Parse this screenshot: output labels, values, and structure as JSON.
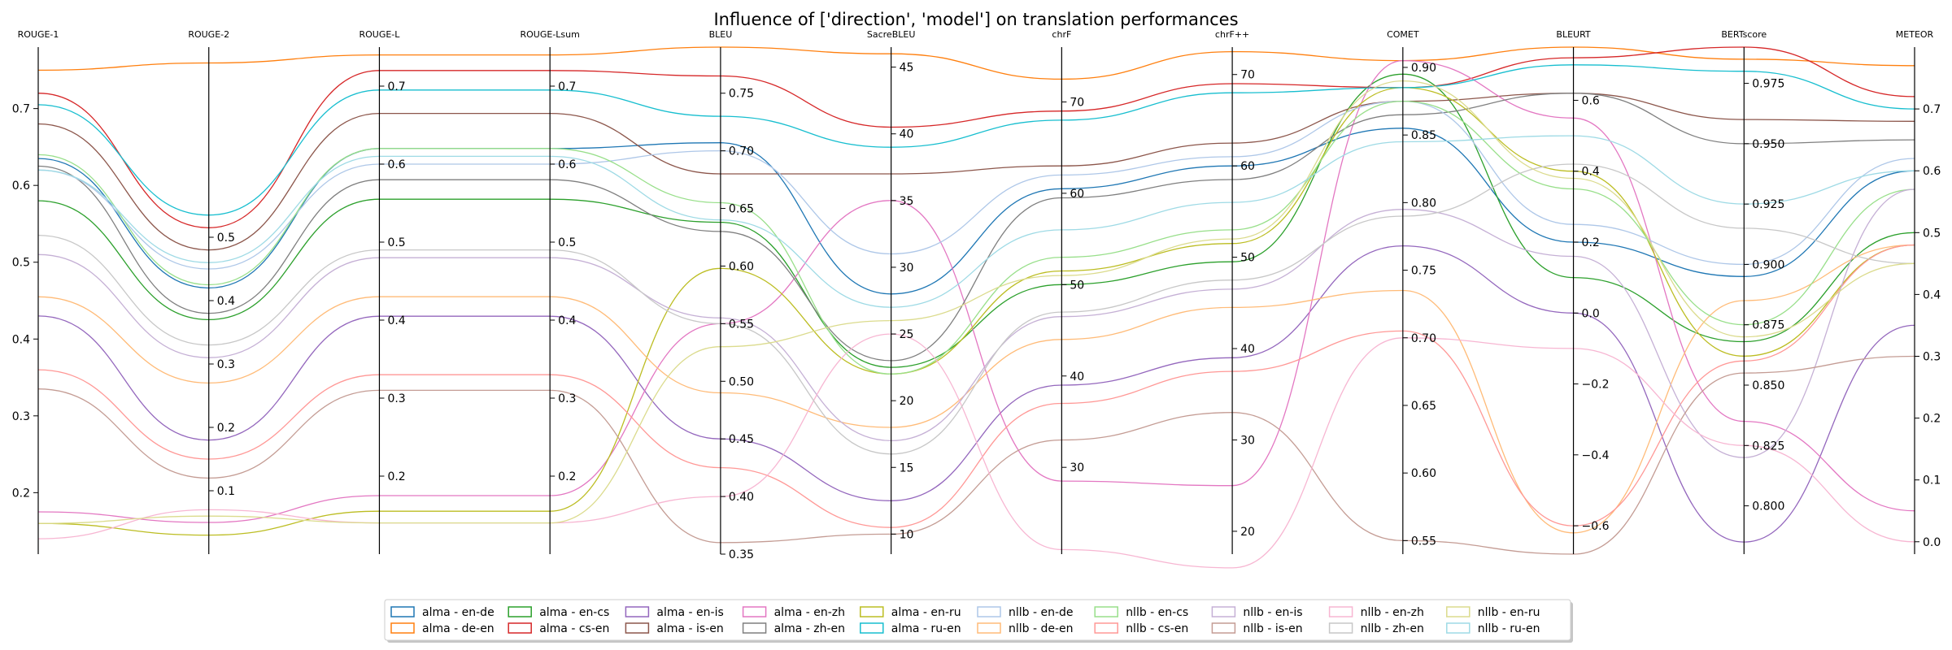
{
  "chart_data": {
    "type": "parallel_coordinates",
    "title": "Influence of ['direction', 'model'] on translation performances",
    "legend": "bottom-center",
    "axes": [
      {
        "name": "ROUGE-1",
        "range": [
          0.12,
          0.78
        ],
        "ticks": [
          0.2,
          0.3,
          0.4,
          0.5,
          0.6,
          0.7
        ],
        "labels": [
          "0.2",
          "0.3",
          "0.4",
          "0.5",
          "0.6",
          "0.7"
        ],
        "tick_side": "left"
      },
      {
        "name": "ROUGE-2",
        "range": [
          0.0,
          0.8
        ],
        "ticks": [
          0.1,
          0.2,
          0.3,
          0.4,
          0.5
        ],
        "labels": [
          "0.1",
          "0.2",
          "0.3",
          "0.4",
          "0.5"
        ],
        "tick_side": "right"
      },
      {
        "name": "ROUGE-L",
        "range": [
          0.1,
          0.75
        ],
        "ticks": [
          0.2,
          0.3,
          0.4,
          0.5,
          0.6,
          0.7
        ],
        "labels": [
          "0.2",
          "0.3",
          "0.4",
          "0.5",
          "0.6",
          "0.7"
        ],
        "tick_side": "right"
      },
      {
        "name": "ROUGE-Lsum",
        "range": [
          0.1,
          0.75
        ],
        "ticks": [
          0.2,
          0.3,
          0.4,
          0.5,
          0.6,
          0.7
        ],
        "labels": [
          "0.2",
          "0.3",
          "0.4",
          "0.5",
          "0.6",
          "0.7"
        ],
        "tick_side": "right"
      },
      {
        "name": "BLEU",
        "range": [
          0.35,
          0.79
        ],
        "ticks": [
          0.35,
          0.4,
          0.45,
          0.5,
          0.55,
          0.6,
          0.65,
          0.7,
          0.75
        ],
        "labels": [
          "0.35",
          "0.40",
          "0.45",
          "0.50",
          "0.55",
          "0.60",
          "0.65",
          "0.70",
          "0.75"
        ],
        "tick_side": "right"
      },
      {
        "name": "SacreBLEU",
        "range": [
          8.5,
          46.5
        ],
        "ticks": [
          10,
          15,
          20,
          25,
          30,
          35,
          40,
          45
        ],
        "labels": [
          "10",
          "15",
          "20",
          "25",
          "30",
          "35",
          "40",
          "45"
        ],
        "tick_side": "right"
      },
      {
        "name": "chrF",
        "range": [
          20.5,
          76
        ],
        "ticks": [
          30,
          40,
          50,
          60,
          70
        ],
        "labels": [
          "30",
          "40",
          "50",
          "60",
          "70"
        ],
        "tick_side": "right"
      },
      {
        "name": "chrF++",
        "range": [
          17.5,
          73
        ],
        "ticks": [
          20,
          30,
          40,
          50,
          60,
          70
        ],
        "labels": [
          "20",
          "30",
          "40",
          "50",
          "60",
          "70"
        ],
        "tick_side": "right"
      },
      {
        "name": "COMET",
        "range": [
          0.54,
          0.915
        ],
        "ticks": [
          0.55,
          0.6,
          0.65,
          0.7,
          0.75,
          0.8,
          0.85,
          0.9
        ],
        "labels": [
          "0.55",
          "0.60",
          "0.65",
          "0.70",
          "0.75",
          "0.80",
          "0.85",
          "0.90"
        ],
        "tick_side": "right"
      },
      {
        "name": "BLEURT",
        "range": [
          -0.68,
          0.75
        ],
        "ticks": [
          -0.6,
          -0.4,
          -0.2,
          0.0,
          0.2,
          0.4,
          0.6
        ],
        "labels": [
          "−0.6",
          "−0.4",
          "−0.2",
          "0.0",
          "0.2",
          "0.4",
          "0.6"
        ],
        "tick_side": "right"
      },
      {
        "name": "BERTscore",
        "range": [
          0.78,
          0.99
        ],
        "ticks": [
          0.8,
          0.825,
          0.85,
          0.875,
          0.9,
          0.925,
          0.95,
          0.975
        ],
        "labels": [
          "0.800",
          "0.825",
          "0.850",
          "0.875",
          "0.900",
          "0.925",
          "0.950",
          "0.975"
        ],
        "tick_side": "right"
      },
      {
        "name": "METEOR",
        "range": [
          -0.02,
          0.8
        ],
        "ticks": [
          0.0,
          0.1,
          0.2,
          0.3,
          0.4,
          0.5,
          0.6,
          0.7
        ],
        "labels": [
          "0.0",
          "0.1",
          "0.2",
          "0.3",
          "0.4",
          "0.5",
          "0.6",
          "0.7"
        ],
        "tick_side": "right"
      }
    ],
    "series": [
      {
        "name": "alma - en-de",
        "color": "#1f77b4",
        "values": [
          0.635,
          0.42,
          0.62,
          0.62,
          0.707,
          28,
          60.5,
          60,
          0.855,
          0.2,
          0.895,
          0.6
        ]
      },
      {
        "name": "alma - de-en",
        "color": "#ff7f0e",
        "values": [
          0.75,
          0.775,
          0.74,
          0.74,
          0.79,
          46,
          72.5,
          72.5,
          0.905,
          0.75,
          0.985,
          0.77
        ]
      },
      {
        "name": "alma - en-cs",
        "color": "#2ca02c",
        "values": [
          0.58,
          0.37,
          0.555,
          0.555,
          0.638,
          22.5,
          50,
          49.5,
          0.895,
          0.1,
          0.868,
          0.5
        ]
      },
      {
        "name": "alma - cs-en",
        "color": "#d62728",
        "values": [
          0.72,
          0.515,
          0.72,
          0.72,
          0.765,
          40.5,
          69,
          69,
          0.885,
          0.72,
          0.99,
          0.72
        ]
      },
      {
        "name": "alma - en-is",
        "color": "#9467bd",
        "values": [
          0.43,
          0.18,
          0.405,
          0.405,
          0.45,
          12.5,
          39,
          39,
          0.768,
          0.0,
          0.785,
          0.35
        ]
      },
      {
        "name": "alma - is-en",
        "color": "#8c564b",
        "values": [
          0.68,
          0.48,
          0.665,
          0.665,
          0.68,
          37,
          63,
          62.5,
          0.875,
          0.62,
          0.96,
          0.68
        ]
      },
      {
        "name": "alma - en-zh",
        "color": "#e377c2",
        "values": [
          0.175,
          0.05,
          0.175,
          0.175,
          0.55,
          35,
          28.5,
          25,
          0.905,
          0.55,
          0.835,
          0.05
        ]
      },
      {
        "name": "alma - zh-en",
        "color": "#7f7f7f",
        "values": [
          0.625,
          0.38,
          0.58,
          0.58,
          0.63,
          23,
          59.5,
          58.5,
          0.865,
          0.62,
          0.95,
          0.65
        ]
      },
      {
        "name": "alma - en-ru",
        "color": "#bcbd22",
        "values": [
          0.16,
          0.03,
          0.155,
          0.155,
          0.598,
          22,
          51.5,
          51.5,
          0.885,
          0.4,
          0.862,
          0.48
        ]
      },
      {
        "name": "alma - ru-en",
        "color": "#17becf",
        "values": [
          0.705,
          0.535,
          0.695,
          0.695,
          0.73,
          39,
          68,
          68,
          0.885,
          0.7,
          0.98,
          0.7
        ]
      },
      {
        "name": "nllb - en-de",
        "color": "#aec7e8",
        "values": [
          0.62,
          0.45,
          0.6,
          0.6,
          0.7,
          31,
          62,
          61,
          0.875,
          0.25,
          0.9,
          0.62
        ]
      },
      {
        "name": "nllb - de-en",
        "color": "#ffbb78",
        "values": [
          0.455,
          0.27,
          0.43,
          0.43,
          0.49,
          18,
          44,
          44.5,
          0.735,
          -0.62,
          0.885,
          0.48
        ]
      },
      {
        "name": "nllb - en-cs",
        "color": "#98df8a",
        "values": [
          0.64,
          0.425,
          0.62,
          0.62,
          0.655,
          22,
          53,
          53,
          0.875,
          0.35,
          0.875,
          0.57
        ]
      },
      {
        "name": "nllb - cs-en",
        "color": "#ff9896",
        "values": [
          0.36,
          0.15,
          0.33,
          0.33,
          0.425,
          10.5,
          37,
          37.5,
          0.705,
          -0.6,
          0.86,
          0.48
        ]
      },
      {
        "name": "nllb - en-is",
        "color": "#c5b0d5",
        "values": [
          0.51,
          0.31,
          0.48,
          0.48,
          0.555,
          17,
          46.5,
          46.5,
          0.795,
          0.16,
          0.82,
          0.57
        ]
      },
      {
        "name": "nllb - is-en",
        "color": "#c49c94",
        "values": [
          0.335,
          0.12,
          0.31,
          0.31,
          0.36,
          10,
          33,
          33,
          0.55,
          -0.68,
          0.855,
          0.3
        ]
      },
      {
        "name": "nllb - en-zh",
        "color": "#f7b6d2",
        "values": [
          0.14,
          0.07,
          0.14,
          0.14,
          0.4,
          25,
          21,
          16,
          0.7,
          -0.1,
          0.825,
          0.0
        ]
      },
      {
        "name": "nllb - zh-en",
        "color": "#c7c7c7",
        "values": [
          0.535,
          0.33,
          0.49,
          0.49,
          0.55,
          16,
          47,
          47.5,
          0.79,
          0.42,
          0.915,
          0.45
        ]
      },
      {
        "name": "nllb - en-ru",
        "color": "#dbdb8d",
        "values": [
          0.16,
          0.06,
          0.14,
          0.14,
          0.53,
          26,
          51,
          52,
          0.89,
          0.38,
          0.87,
          0.45
        ]
      },
      {
        "name": "nllb - ru-en",
        "color": "#9edae5",
        "values": [
          0.62,
          0.46,
          0.61,
          0.61,
          0.64,
          27,
          56,
          56,
          0.845,
          0.5,
          0.925,
          0.6
        ]
      }
    ]
  }
}
